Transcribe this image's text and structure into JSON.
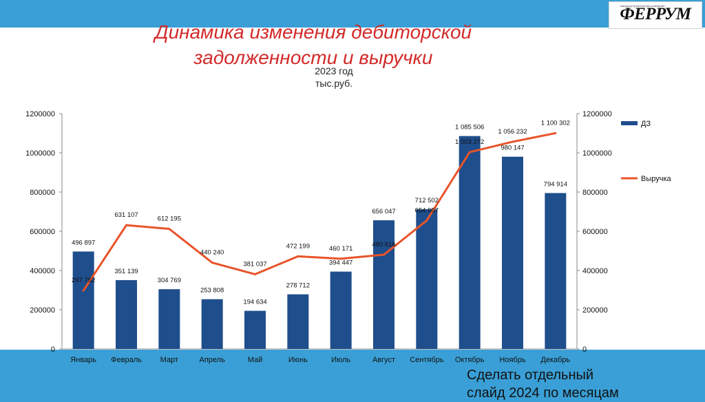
{
  "slide": {
    "title_line1": "Динамика изменения дебиторской",
    "title_line2": "задолженности и выручки",
    "subtitle_line1": "2023 год",
    "subtitle_line2": "тыс.руб.",
    "logo_text": "ФЕРРУМ",
    "logo_tagline": "машиностроительная компания",
    "note_line1": "Сделать отдельный",
    "note_line2": "слайд 2024 по месяцам",
    "colors": {
      "background": "#3a9fd6",
      "title": "#d42a2a",
      "bars": "#1f4e8c",
      "line": "#e8542a"
    }
  },
  "chart_data": {
    "type": "bar",
    "categories": [
      "Январь",
      "Февраль",
      "Март",
      "Апрель",
      "Май",
      "Июнь",
      "Июль",
      "Август",
      "Сентябрь",
      "Октябрь",
      "Ноябрь",
      "Декабрь"
    ],
    "series": [
      {
        "name": "ДЗ",
        "type": "bar",
        "values": [
          496897,
          351139,
          304769,
          253808,
          194634,
          278712,
          394447,
          656047,
          712502,
          1085506,
          980147,
          794914
        ],
        "labels": [
          "496 897",
          "351 139",
          "304 769",
          "253 808",
          "194 634",
          "278 712",
          "394 447",
          "656 047",
          "712 502",
          "1 085 506",
          "980 147",
          "794 914"
        ]
      },
      {
        "name": "Выручка",
        "type": "line",
        "values": [
          297752,
          631107,
          612195,
          440240,
          381037,
          472199,
          460171,
          480616,
          654957,
          1003272,
          1056232,
          1100302
        ],
        "labels": [
          "297 752",
          "631 107",
          "612 195",
          "440 240",
          "381 037",
          "472 199",
          "460 171",
          "480 616",
          "654 957",
          "1 003 272",
          "1 056 232",
          "1 100 302"
        ]
      }
    ],
    "y_ticks": [
      "0",
      "200000",
      "400000",
      "600000",
      "800000",
      "1000000",
      "1200000"
    ],
    "ylim": [
      0,
      1200000
    ],
    "secondary_axis": true,
    "legend_position": "right",
    "grid": false
  }
}
